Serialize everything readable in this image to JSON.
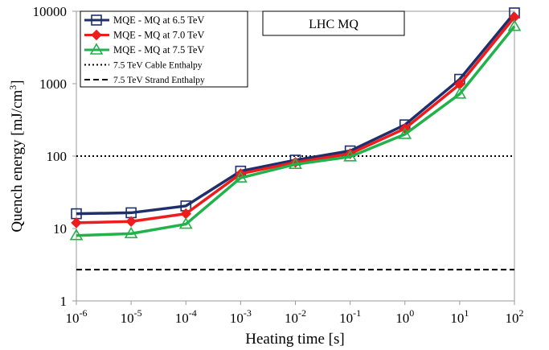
{
  "chart_data": {
    "type": "line",
    "title": "LHC MQ",
    "xlabel": "Heating time [s]",
    "ylabel": "Quench energy [mJ/cm",
    "ylabel_sup": "3",
    "ylabel_tail": "]",
    "x_scale": "log",
    "y_scale": "log",
    "xlim": [
      1e-06,
      100
    ],
    "ylim": [
      1,
      10000
    ],
    "x": [
      1e-06,
      1e-05,
      0.0001,
      0.001,
      0.01,
      0.1,
      1,
      10,
      100
    ],
    "x_ticks": [
      {
        "base": "10",
        "exp": "-6"
      },
      {
        "base": "10",
        "exp": "-5"
      },
      {
        "base": "10",
        "exp": "-4"
      },
      {
        "base": "10",
        "exp": "-3"
      },
      {
        "base": "10",
        "exp": "-2"
      },
      {
        "base": "10",
        "exp": "-1"
      },
      {
        "base": "10",
        "exp": "0"
      },
      {
        "base": "10",
        "exp": "1"
      },
      {
        "base": "10",
        "exp": "2"
      }
    ],
    "y_ticks": [
      {
        "value": 1,
        "label": "1"
      },
      {
        "value": 10,
        "label": "10"
      },
      {
        "value": 100,
        "label": "100"
      },
      {
        "value": 1000,
        "label": "1000"
      },
      {
        "value": 10000,
        "label": "10000"
      }
    ],
    "grid": false,
    "legend_position": "top-left",
    "series": [
      {
        "name": "MQE - MQ at 6.5 TeV",
        "color": "#1f2f6b",
        "marker": "square",
        "values": [
          16,
          16.5,
          20.5,
          62,
          88,
          118,
          270,
          1150,
          9500
        ]
      },
      {
        "name": "MQE - MQ at 7.0 TeV",
        "color": "#ee1c1c",
        "marker": "diamond",
        "values": [
          12,
          12.5,
          16,
          57,
          82,
          108,
          240,
          980,
          8300
        ]
      },
      {
        "name": "MQE - MQ at 7.5 TeV",
        "color": "#22b24c",
        "marker": "triangle",
        "values": [
          8,
          8.5,
          11.5,
          50,
          77,
          98,
          200,
          720,
          6200
        ]
      }
    ],
    "reference_lines": [
      {
        "name": "7.5 TeV Cable Enthalpy",
        "value": 100,
        "style": "dotted",
        "color": "#000000"
      },
      {
        "name": "7.5 TeV Strand Enthalpy",
        "value": 2.7,
        "style": "dashed",
        "color": "#000000"
      }
    ]
  }
}
